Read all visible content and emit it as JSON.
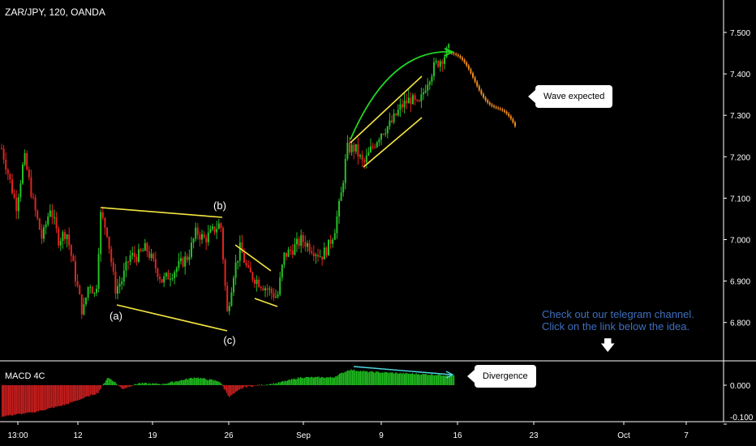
{
  "header": {
    "title": "ZAR/JPY, 120, OANDA"
  },
  "indicator": {
    "label": "MACD 4C"
  },
  "note": {
    "line1": "Check out our telegram channel.",
    "line2": "Click on the link below the idea."
  },
  "callouts": {
    "wave": "Wave expected",
    "divergence": "Divergence"
  },
  "wave_labels": [
    "(a)",
    "(b)",
    "(c)"
  ],
  "colors": {
    "background": "#000000",
    "up_candle": "#26c026",
    "down_candle": "#e0241e",
    "projection": "#f08a1e",
    "pattern_lines": "#f5e642",
    "arc": "#22d422",
    "divergence_line": "#4fd8e0",
    "note_text": "#3f6fbf",
    "macd_positive": "#1fb81f",
    "macd_negative": "#c81e1e"
  },
  "chart_data": [
    {
      "type": "candlestick",
      "title": "ZAR/JPY, 120, OANDA",
      "x_tick_labels": [
        "13:00",
        "12",
        "19",
        "26",
        "Sep",
        "9",
        "16",
        "23",
        "Oct",
        "7"
      ],
      "y_tick_labels": [
        "7.500",
        "7.400",
        "7.300",
        "7.200",
        "7.100",
        "7.000",
        "6.900",
        "6.800"
      ],
      "ylim": [
        6.75,
        7.56
      ],
      "grid": false,
      "key_points": [
        {
          "label": "(a)",
          "price": 6.86
        },
        {
          "label": "(b)",
          "price": 7.06
        },
        {
          "label": "(c)",
          "price": 6.8
        },
        {
          "label": "peak",
          "price": 7.46
        }
      ],
      "projection": {
        "from": 7.45,
        "to": 7.26,
        "label": "Wave expected"
      }
    },
    {
      "type": "bar",
      "title": "MACD 4C",
      "y_tick_labels": [
        "0.000",
        "-0.100"
      ],
      "ylim": [
        -0.11,
        0.045
      ],
      "annotation": "Divergence"
    }
  ]
}
